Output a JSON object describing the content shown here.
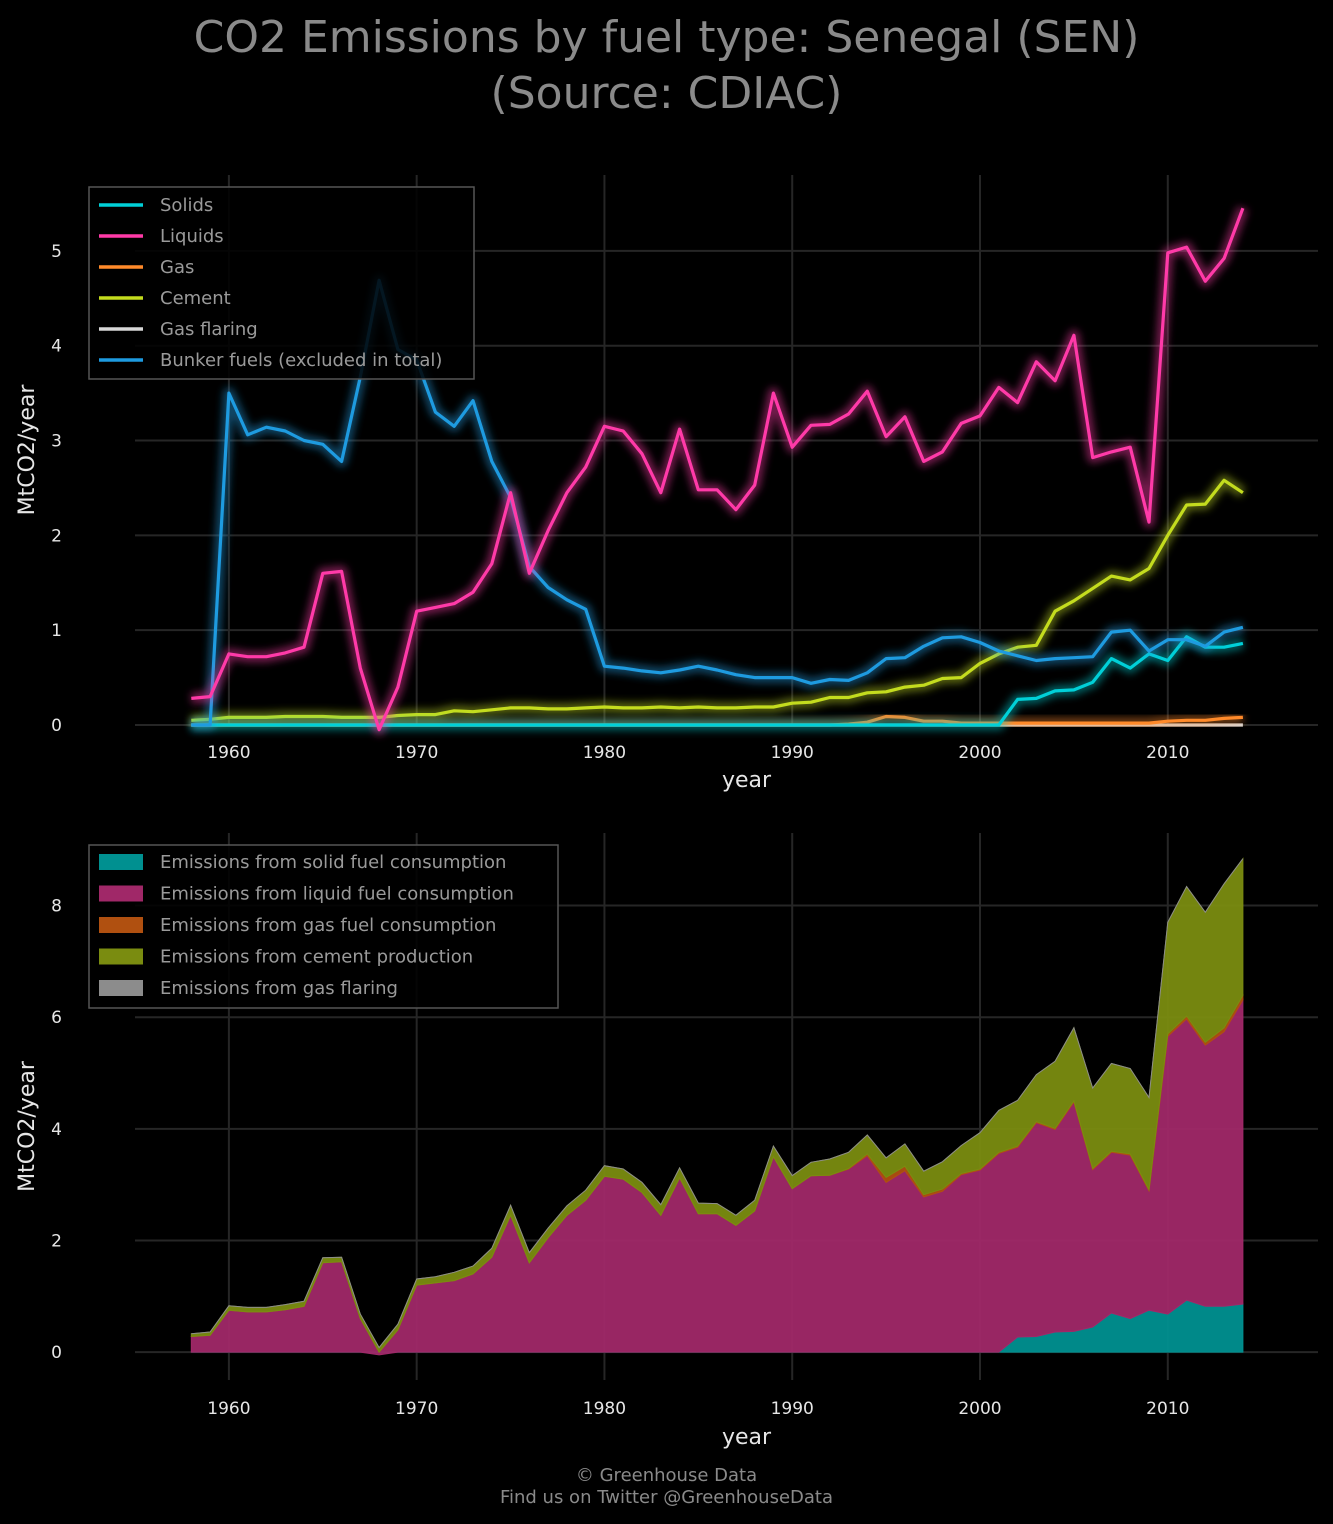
{
  "title_line1": "CO2 Emissions by fuel type: Senegal (SEN)",
  "title_line2": "(Source: CDIAC)",
  "footer_line1": "© Greenhouse Data",
  "footer_line2": "Find us on Twitter @GreenhouseData",
  "colors": {
    "solids": "#00d0d8",
    "liquids": "#ff3aa8",
    "gas": "#ff8a2a",
    "cement": "#c4dc1e",
    "gas_flaring": "#d8d8d8",
    "bunker": "#1e9be0",
    "area_solid": "#009090",
    "area_liquid": "#a02868",
    "area_gas": "#b05010",
    "area_cement": "#7a8c10",
    "area_flaring": "#8c8c8c"
  },
  "chart_data": [
    {
      "type": "line",
      "xlabel": "year",
      "ylabel": "MtCO2/year",
      "xlim": [
        1955,
        2018
      ],
      "ylim": [
        0,
        5.8
      ],
      "xticks": [
        1960,
        1970,
        1980,
        1990,
        2000,
        2010
      ],
      "yticks": [
        0,
        1,
        2,
        3,
        4,
        5
      ],
      "grid": true,
      "legend_position": "top-left",
      "x": [
        1958,
        1959,
        1960,
        1961,
        1962,
        1963,
        1964,
        1965,
        1966,
        1967,
        1968,
        1969,
        1970,
        1971,
        1972,
        1973,
        1974,
        1975,
        1976,
        1977,
        1978,
        1979,
        1980,
        1981,
        1982,
        1983,
        1984,
        1985,
        1986,
        1987,
        1988,
        1989,
        1990,
        1991,
        1992,
        1993,
        1994,
        1995,
        1996,
        1997,
        1998,
        1999,
        2000,
        2001,
        2002,
        2003,
        2004,
        2005,
        2006,
        2007,
        2008,
        2009,
        2010,
        2011,
        2012,
        2013,
        2014
      ],
      "series": [
        {
          "key": "solids",
          "name": "Solids",
          "values": [
            0,
            0,
            0,
            0,
            0,
            0,
            0,
            0,
            0,
            0,
            0,
            0,
            0,
            0,
            0,
            0,
            0,
            0,
            0,
            0,
            0,
            0,
            0,
            0,
            0,
            0,
            0,
            0,
            0,
            0,
            0,
            0,
            0,
            0,
            0,
            0,
            0,
            0,
            0,
            0,
            0,
            0,
            0,
            0,
            0.27,
            0.28,
            0.36,
            0.37,
            0.45,
            0.7,
            0.6,
            0.75,
            0.68,
            0.93,
            0.82,
            0.82,
            0.86
          ]
        },
        {
          "key": "liquids",
          "name": "Liquids",
          "values": [
            0.28,
            0.3,
            0.75,
            0.72,
            0.72,
            0.76,
            0.82,
            1.6,
            1.62,
            0.6,
            -0.05,
            0.4,
            1.2,
            1.24,
            1.28,
            1.4,
            1.7,
            2.45,
            1.6,
            2.05,
            2.45,
            2.72,
            3.15,
            3.1,
            2.86,
            2.45,
            3.12,
            2.48,
            2.48,
            2.27,
            2.53,
            3.5,
            2.93,
            3.16,
            3.17,
            3.28,
            3.52,
            3.04,
            3.25,
            2.78,
            2.88,
            3.18,
            3.26,
            3.56,
            3.4,
            3.83,
            3.63,
            4.11,
            2.82,
            2.88,
            2.93,
            2.14,
            4.98,
            5.04,
            4.68,
            4.92,
            5.45
          ]
        },
        {
          "key": "gas",
          "name": "Gas",
          "values": [
            0,
            0,
            0,
            0,
            0,
            0,
            0,
            0,
            0,
            0,
            0,
            0,
            0,
            0,
            0,
            0,
            0,
            0,
            0,
            0,
            0,
            0,
            0,
            0,
            0,
            0,
            0,
            0,
            0,
            0,
            0,
            0,
            0,
            0,
            0,
            0.01,
            0.03,
            0.09,
            0.08,
            0.04,
            0.04,
            0.02,
            0.02,
            0.02,
            0.02,
            0.02,
            0.02,
            0.02,
            0.02,
            0.02,
            0.02,
            0.02,
            0.04,
            0.05,
            0.05,
            0.07,
            0.08
          ]
        },
        {
          "key": "cement",
          "name": "Cement",
          "values": [
            0.05,
            0.06,
            0.08,
            0.08,
            0.08,
            0.09,
            0.09,
            0.09,
            0.08,
            0.08,
            0.08,
            0.1,
            0.11,
            0.11,
            0.15,
            0.14,
            0.16,
            0.18,
            0.18,
            0.17,
            0.17,
            0.18,
            0.19,
            0.18,
            0.18,
            0.19,
            0.18,
            0.19,
            0.18,
            0.18,
            0.19,
            0.19,
            0.23,
            0.24,
            0.29,
            0.29,
            0.34,
            0.35,
            0.4,
            0.42,
            0.49,
            0.5,
            0.65,
            0.75,
            0.82,
            0.84,
            1.2,
            1.31,
            1.44,
            1.57,
            1.53,
            1.65,
            2.0,
            2.32,
            2.33,
            2.58,
            2.45
          ]
        },
        {
          "key": "gas_flaring",
          "name": "Gas flaring",
          "values": [
            0,
            0,
            0,
            0,
            0,
            0,
            0,
            0,
            0,
            0,
            0,
            0,
            0,
            0,
            0,
            0,
            0,
            0,
            0,
            0,
            0,
            0,
            0,
            0,
            0,
            0,
            0,
            0,
            0,
            0,
            0,
            0,
            0,
            0,
            0,
            0,
            0,
            0,
            0,
            0,
            0,
            0,
            0,
            0,
            0,
            0,
            0,
            0,
            0,
            0,
            0,
            0,
            0,
            0,
            0,
            0,
            0
          ]
        },
        {
          "key": "bunker",
          "name": "Bunker fuels (excluded in total)",
          "values": [
            0,
            0,
            3.5,
            3.06,
            3.14,
            3.1,
            3.0,
            2.96,
            2.78,
            3.67,
            4.69,
            3.96,
            3.85,
            3.3,
            3.15,
            3.42,
            2.78,
            2.4,
            1.67,
            1.45,
            1.32,
            1.22,
            0.62,
            0.6,
            0.57,
            0.55,
            0.58,
            0.62,
            0.58,
            0.53,
            0.5,
            0.5,
            0.5,
            0.44,
            0.48,
            0.47,
            0.55,
            0.7,
            0.71,
            0.83,
            0.92,
            0.93,
            0.87,
            0.78,
            0.73,
            0.68,
            0.7,
            0.71,
            0.72,
            0.98,
            1.0,
            0.78,
            0.9,
            0.9,
            0.83,
            0.98,
            1.03
          ]
        }
      ]
    },
    {
      "type": "area",
      "stacked": true,
      "xlabel": "year",
      "ylabel": "MtCO2/year",
      "xlim": [
        1955,
        2018
      ],
      "ylim": [
        -0.5,
        9.3
      ],
      "xticks": [
        1960,
        1970,
        1980,
        1990,
        2000,
        2010
      ],
      "yticks": [
        0,
        2,
        4,
        6,
        8
      ],
      "grid": true,
      "legend_position": "top-left",
      "series": [
        {
          "key": "area_solid",
          "name": "Emissions from solid fuel consumption",
          "source": "solids"
        },
        {
          "key": "area_liquid",
          "name": "Emissions from liquid fuel consumption",
          "source": "liquids"
        },
        {
          "key": "area_gas",
          "name": "Emissions from gas fuel consumption",
          "source": "gas"
        },
        {
          "key": "area_cement",
          "name": "Emissions from cement production",
          "source": "cement"
        },
        {
          "key": "area_flaring",
          "name": "Emissions from gas flaring",
          "source": "gas_flaring"
        }
      ]
    }
  ]
}
